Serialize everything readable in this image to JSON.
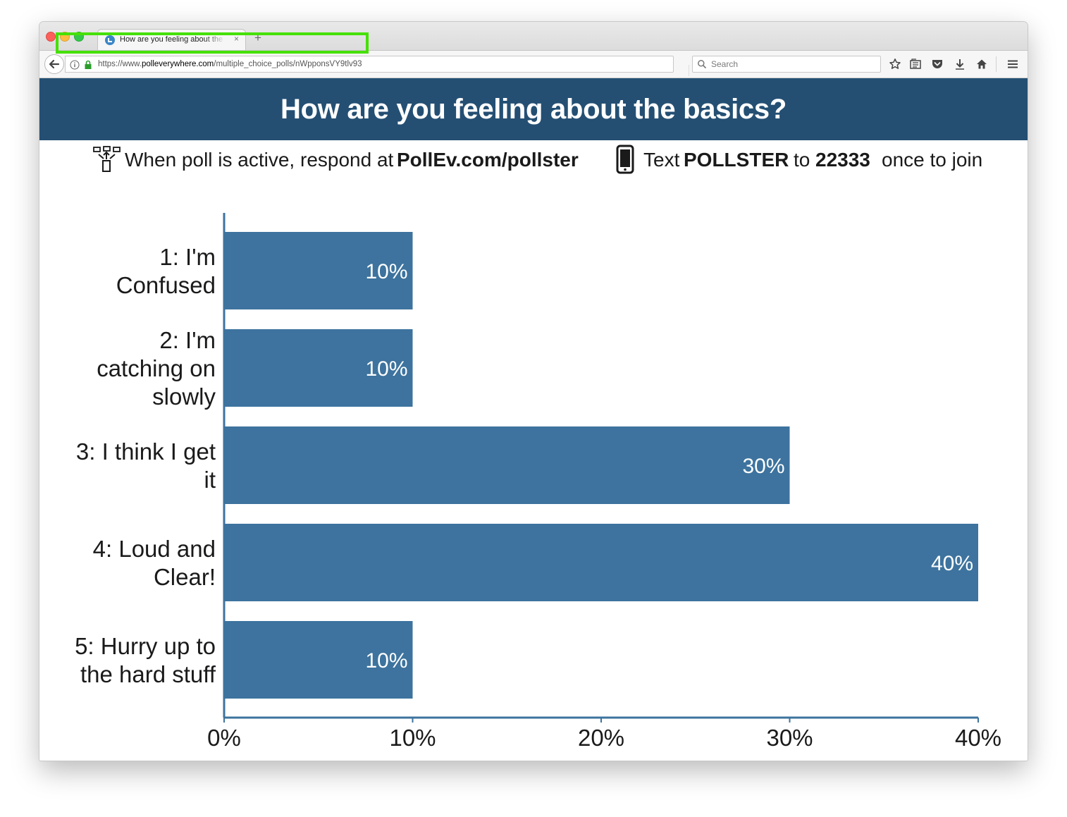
{
  "browser": {
    "tab_title": "How are you feeling about the basics?",
    "tab_close": "×",
    "new_tab": "+",
    "url_prefix": "https://www.",
    "url_host": "polleverywhere.com",
    "url_path": "/multiple_choice_polls/nWpponsVY9tlv93",
    "search_placeholder": "Search"
  },
  "poll": {
    "title": "How are you feeling about the basics?",
    "respond_prefix": "When poll is active, respond at",
    "respond_url": "PollEv.com/pollster",
    "text_prefix": "Text",
    "text_keyword": "POLLSTER",
    "text_to": "to",
    "text_number": "22333",
    "text_suffix": "once to join"
  },
  "colors": {
    "banner": "#244f73",
    "bar": "#3d739e",
    "axis": "#3d739e",
    "url_highlight": "#46e000"
  },
  "chart_data": {
    "type": "bar",
    "orientation": "horizontal",
    "categories": [
      [
        "1: I'm",
        "Confused"
      ],
      [
        "2: I'm",
        "catching on",
        "slowly"
      ],
      [
        "3: I think I get",
        "it"
      ],
      [
        "4: Loud and",
        "Clear!"
      ],
      [
        "5: Hurry up to",
        "the hard stuff"
      ]
    ],
    "values": [
      10,
      10,
      30,
      40,
      10
    ],
    "value_labels": [
      "10%",
      "10%",
      "30%",
      "40%",
      "10%"
    ],
    "xlim": [
      0,
      40
    ],
    "xticks": [
      0,
      10,
      20,
      30,
      40
    ],
    "xtick_labels": [
      "0%",
      "10%",
      "20%",
      "30%",
      "40%"
    ],
    "grid": false
  }
}
